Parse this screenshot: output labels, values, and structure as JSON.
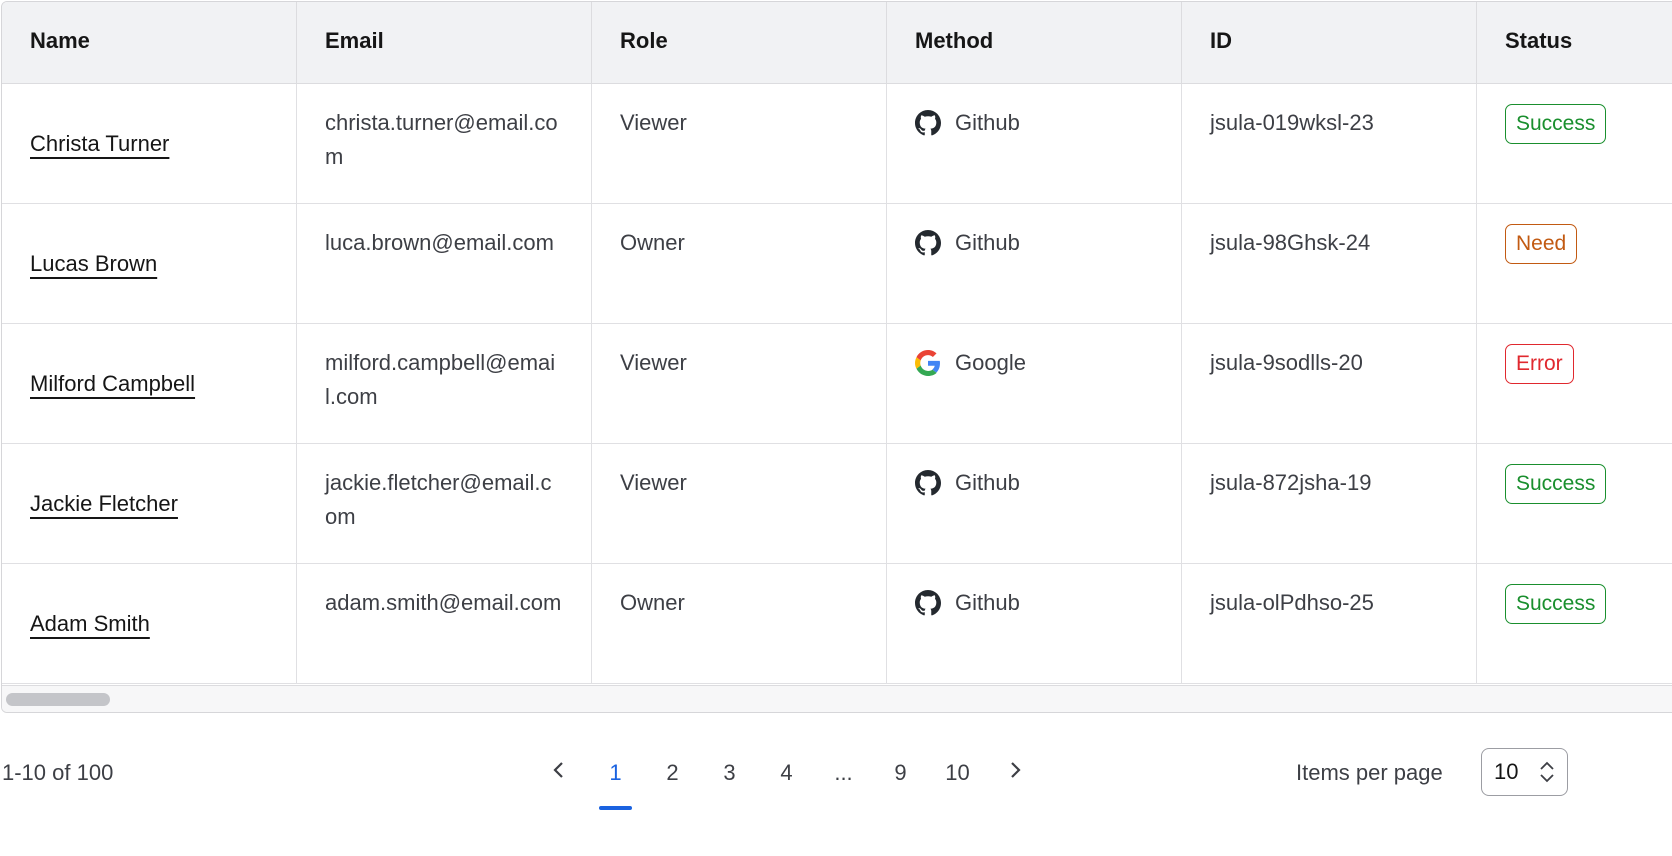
{
  "table": {
    "columns": [
      "Name",
      "Email",
      "Role",
      "Method",
      "ID",
      "Status"
    ],
    "rows": [
      {
        "name": "Christa Turner",
        "email": "christa.turner@email.com",
        "role": "Viewer",
        "method": "Github",
        "method_icon": "github-icon",
        "id": "jsula-019wksl-23",
        "status": "Success",
        "status_color": "#1a8f2e"
      },
      {
        "name": "Lucas Brown",
        "email": "luca.brown@email.com",
        "role": "Owner",
        "method": "Github",
        "method_icon": "github-icon",
        "id": "jsula-98Ghsk-24",
        "status": "Need",
        "status_color": "#c25a12"
      },
      {
        "name": "Milford Campbell",
        "email": "milford.campbell@email.com",
        "role": "Viewer",
        "method": "Google",
        "method_icon": "google-icon",
        "id": "jsula-9sodlls-20",
        "status": "Error",
        "status_color": "#e0282e"
      },
      {
        "name": "Jackie Fletcher",
        "email": "jackie.fletcher@email.com",
        "role": "Viewer",
        "method": "Github",
        "method_icon": "github-icon",
        "id": "jsula-872jsha-19",
        "status": "Success",
        "status_color": "#1a8f2e"
      },
      {
        "name": "Adam Smith",
        "email": "adam.smith@email.com",
        "role": "Owner",
        "method": "Github",
        "method_icon": "github-icon",
        "id": "jsula-olPdhso-25",
        "status": "Success",
        "status_color": "#1a8f2e"
      }
    ]
  },
  "pagination": {
    "range": "1-10 of 100",
    "pages": [
      "1",
      "2",
      "3",
      "4",
      "...",
      "9",
      "10"
    ],
    "current": "1",
    "items_per_page_label": "Items per page",
    "items_per_page": "10",
    "accent": "#1a62e0"
  }
}
